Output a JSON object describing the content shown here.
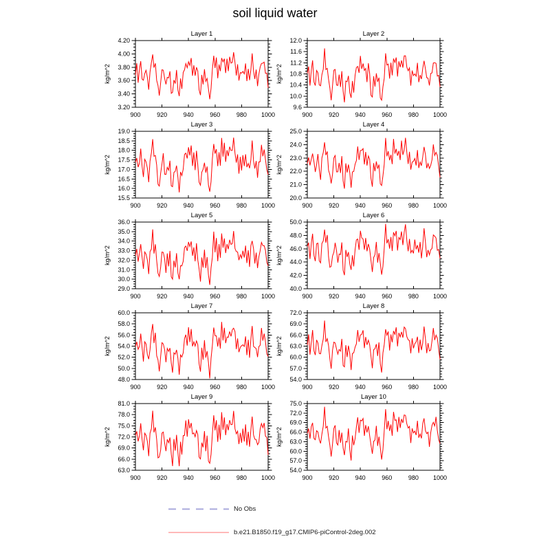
{
  "title": "soil liquid water",
  "legend": {
    "items": [
      {
        "label": "No Obs",
        "color": "#a9a9dc",
        "style": "dashed"
      },
      {
        "label": "b.e21.B1850.f19_g17.CMIP6-piControl-2deg.002",
        "color": "#ff9f9f",
        "style": "solid"
      }
    ]
  },
  "chart_data": {
    "type": "line",
    "title": "soil liquid water",
    "ylabel": "kg/m^2",
    "line_color": "#ff0000",
    "x": {
      "start": 900,
      "end": 1000,
      "step": 1,
      "ticks": [
        900,
        920,
        940,
        960,
        980,
        1000
      ],
      "tick_labels": [
        "900",
        "920",
        "940",
        "960",
        "980",
        "1000"
      ]
    },
    "grid": false,
    "legend_position": "bottom",
    "y_minors_per_interval": 3,
    "pattern_note": "normalized 0-100 annual signal, years 900-1000, shared across layers; per-layer values = vmin + (vmax-vmin)*clamp(pattern + amp*sin(i*freq+phase),0,100)/100",
    "pattern": [
      50,
      68,
      42,
      58,
      75,
      48,
      35,
      55,
      62,
      40,
      28,
      55,
      70,
      95,
      60,
      72,
      45,
      25,
      15,
      38,
      55,
      65,
      42,
      30,
      52,
      40,
      58,
      20,
      12,
      45,
      35,
      55,
      28,
      8,
      42,
      30,
      50,
      62,
      75,
      58,
      80,
      68,
      78,
      55,
      65,
      48,
      70,
      52,
      25,
      15,
      45,
      38,
      60,
      35,
      50,
      20,
      5,
      30,
      55,
      90,
      65,
      78,
      50,
      68,
      55,
      88,
      70,
      82,
      58,
      75,
      62,
      85,
      68,
      80,
      90,
      72,
      55,
      65,
      42,
      58,
      48,
      62,
      52,
      68,
      45,
      58,
      40,
      65,
      85,
      60,
      45,
      55,
      35,
      50,
      62,
      78,
      68,
      75,
      58,
      48,
      30
    ],
    "layers": [
      {
        "title": "Layer 1",
        "ylim": [
          3.2,
          4.2
        ],
        "yticks": [
          "4.20",
          "4.00",
          "3.80",
          "3.60",
          "3.40",
          "3.20"
        ],
        "vmin": 3.28,
        "vmax": 4.08,
        "jitter": {
          "amp": 6,
          "freq": 2.3,
          "phase": 0.0
        }
      },
      {
        "title": "Layer 2",
        "ylim": [
          9.6,
          12.0
        ],
        "yticks": [
          "12.0",
          "11.6",
          "11.2",
          "10.8",
          "10.4",
          "10.0",
          "9.6"
        ],
        "vmin": 9.65,
        "vmax": 11.72,
        "jitter": {
          "amp": 7,
          "freq": 1.9,
          "phase": 1.2
        }
      },
      {
        "title": "Layer 3",
        "ylim": [
          15.5,
          19.0
        ],
        "yticks": [
          "19.0",
          "18.5",
          "18.0",
          "17.5",
          "17.0",
          "16.5",
          "16.0",
          "15.5"
        ],
        "vmin": 15.55,
        "vmax": 18.85,
        "jitter": {
          "amp": 6,
          "freq": 2.7,
          "phase": 2.1
        }
      },
      {
        "title": "Layer 4",
        "ylim": [
          20.0,
          25.0
        ],
        "yticks": [
          "25.0",
          "24.0",
          "23.0",
          "22.0",
          "21.0",
          "20.0"
        ],
        "vmin": 20.45,
        "vmax": 24.65,
        "jitter": {
          "amp": 7,
          "freq": 2.1,
          "phase": 3.0
        }
      },
      {
        "title": "Layer 5",
        "ylim": [
          29.0,
          36.0
        ],
        "yticks": [
          "36.0",
          "35.0",
          "34.0",
          "33.0",
          "32.0",
          "31.0",
          "30.0",
          "29.0"
        ],
        "vmin": 29.2,
        "vmax": 35.3,
        "jitter": {
          "amp": 6,
          "freq": 2.9,
          "phase": 0.7
        }
      },
      {
        "title": "Layer 6",
        "ylim": [
          40.0,
          50.0
        ],
        "yticks": [
          "50.0",
          "48.0",
          "46.0",
          "44.0",
          "42.0",
          "40.0"
        ],
        "vmin": 41.5,
        "vmax": 49.9,
        "jitter": {
          "amp": 8,
          "freq": 1.7,
          "phase": 1.9
        }
      },
      {
        "title": "Layer 7",
        "ylim": [
          48.0,
          60.0
        ],
        "yticks": [
          "60.0",
          "58.0",
          "56.0",
          "54.0",
          "52.0",
          "50.0",
          "48.0"
        ],
        "vmin": 48.2,
        "vmax": 58.9,
        "jitter": {
          "amp": 7,
          "freq": 2.5,
          "phase": 2.6
        }
      },
      {
        "title": "Layer 8",
        "ylim": [
          54.0,
          72.0
        ],
        "yticks": [
          "72.0",
          "69.0",
          "66.0",
          "63.0",
          "60.0",
          "57.0",
          "54.0"
        ],
        "vmin": 55.9,
        "vmax": 69.9,
        "jitter": {
          "amp": 8,
          "freq": 2.0,
          "phase": 0.4
        }
      },
      {
        "title": "Layer 9",
        "ylim": [
          63.0,
          81.0
        ],
        "yticks": [
          "81.0",
          "78.0",
          "75.0",
          "72.0",
          "69.0",
          "66.0",
          "63.0"
        ],
        "vmin": 63.1,
        "vmax": 79.7,
        "jitter": {
          "amp": 6,
          "freq": 2.8,
          "phase": 1.5
        }
      },
      {
        "title": "Layer 10",
        "ylim": [
          54.0,
          75.0
        ],
        "yticks": [
          "75.0",
          "72.0",
          "69.0",
          "66.0",
          "63.0",
          "60.0",
          "57.0",
          "54.0"
        ],
        "vmin": 56.4,
        "vmax": 74.0,
        "jitter": {
          "amp": 7,
          "freq": 1.8,
          "phase": 2.8
        }
      }
    ]
  }
}
